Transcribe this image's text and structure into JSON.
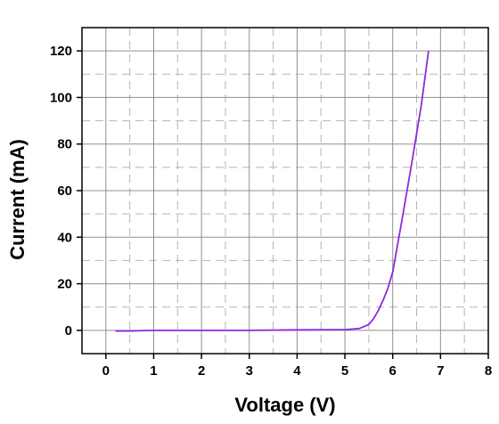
{
  "chart_data": {
    "type": "line",
    "title": "",
    "xlabel": "Voltage (V)",
    "ylabel": "Current (mA)",
    "xlim": [
      -0.5,
      8
    ],
    "ylim": [
      -10,
      130
    ],
    "xticks": [
      0,
      1,
      2,
      3,
      4,
      5,
      6,
      7,
      8
    ],
    "xtick_labels": [
      "0",
      "1",
      "2",
      "3",
      "4",
      "5",
      "6",
      "7",
      "8"
    ],
    "yticks": [
      0,
      20,
      40,
      60,
      80,
      100,
      120
    ],
    "ytick_labels": [
      "0",
      "20",
      "40",
      "60",
      "80",
      "100",
      "120"
    ],
    "grid": "major solid, minor dashed",
    "legend": "none",
    "series": [
      {
        "color": "#8a2be2",
        "x": [
          0.2,
          0.5,
          1.0,
          2.0,
          3.0,
          4.0,
          5.0,
          5.3,
          5.5,
          5.6,
          5.7,
          5.8,
          5.9,
          6.0,
          6.2,
          6.4,
          6.6,
          6.75
        ],
        "y": [
          -0.3,
          -0.3,
          0,
          0,
          0,
          0.2,
          0.3,
          0.8,
          2.5,
          5,
          8.5,
          13,
          18,
          25,
          48,
          72,
          97,
          120
        ]
      }
    ]
  }
}
